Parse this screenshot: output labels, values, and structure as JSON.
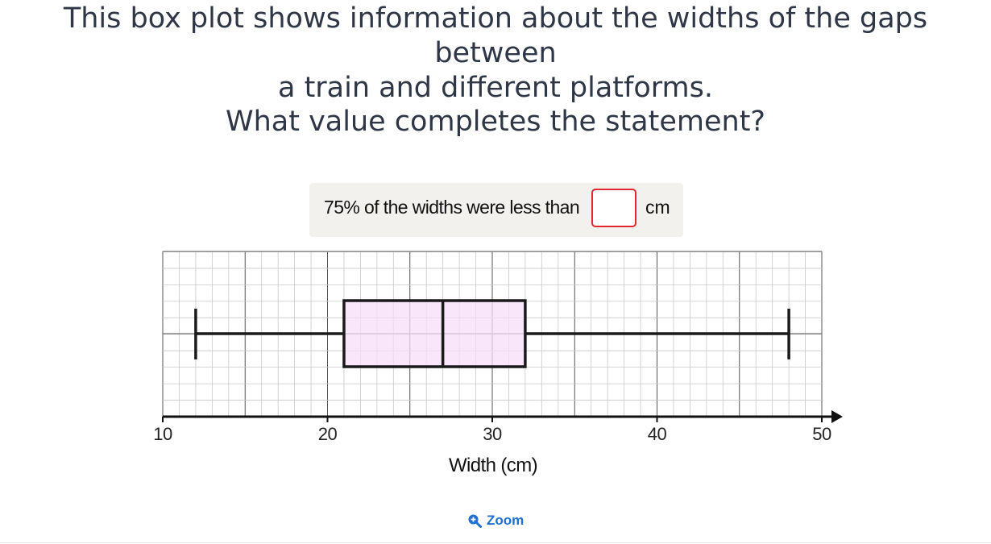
{
  "question": {
    "line1": "This box plot shows information about the widths of the gaps between",
    "line2": "a train and different platforms.",
    "prompt": "What value completes the statement?"
  },
  "statement": {
    "text": "75% of the widths were less than",
    "input_value": "",
    "unit": "cm"
  },
  "chart_data": {
    "type": "boxplot",
    "xlabel": "Width (cm)",
    "xlim": [
      10,
      50
    ],
    "ticks": [
      10,
      20,
      30,
      40,
      50
    ],
    "tick_labels": [
      "10",
      "20",
      "30",
      "40",
      "50"
    ],
    "minor_step": 1,
    "grid": true,
    "box": {
      "min": 12,
      "q1": 21,
      "median": 27,
      "q3": 32,
      "max": 48
    },
    "box_fill": "#f8def8",
    "stroke": "#1a1a1a"
  },
  "zoom": {
    "label": "Zoom",
    "icon": "zoom-in-icon",
    "color": "#1f6fd1"
  }
}
